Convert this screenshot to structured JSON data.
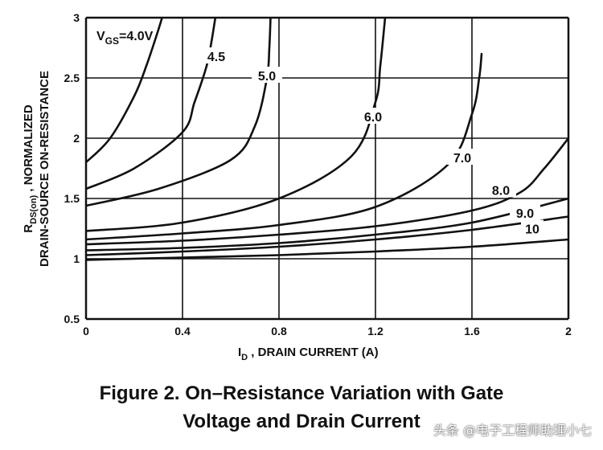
{
  "chart_data": {
    "type": "line",
    "xlabel": "I",
    "xlabel_sub": "D",
    "xlabel_rest": " , DRAIN CURRENT (A)",
    "ylabel_line1_main": "R",
    "ylabel_line1_sub": "DS(on)",
    "ylabel_line1_rest": " , NORMALIZED",
    "ylabel_line2": "DRAIN-SOURCE ON-RESISTANCE",
    "xlim": [
      0,
      2
    ],
    "ylim": [
      0.5,
      3
    ],
    "x_ticks": [
      "0",
      "0.4",
      "0.8",
      "1.2",
      "1.6",
      "2"
    ],
    "y_ticks": [
      "0.5",
      "1",
      "1.5",
      "2",
      "2.5",
      "3"
    ],
    "x_tick_values": [
      0,
      0.4,
      0.8,
      1.2,
      1.6,
      2
    ],
    "y_tick_values": [
      0.5,
      1,
      1.5,
      2,
      2.5,
      3
    ],
    "grid": true,
    "legend_title_main": "V",
    "legend_title_sub": "GS",
    "legend_title_rest": "=4.0V",
    "series": [
      {
        "name": "4.0",
        "x": [
          0,
          0.1,
          0.2,
          0.25,
          0.3,
          0.33,
          0.36
        ],
        "y": [
          1.8,
          2.0,
          2.35,
          2.6,
          2.9,
          3.1,
          3.3
        ]
      },
      {
        "name": "4.5",
        "x": [
          0,
          0.2,
          0.4,
          0.45,
          0.5,
          0.52,
          0.54
        ],
        "y": [
          1.58,
          1.75,
          2.05,
          2.3,
          2.6,
          2.8,
          3.05
        ]
      },
      {
        "name": "5.0",
        "x": [
          0,
          0.3,
          0.6,
          0.7,
          0.75,
          0.76,
          0.765
        ],
        "y": [
          1.44,
          1.58,
          1.82,
          2.1,
          2.5,
          2.75,
          3.0
        ]
      },
      {
        "name": "6.0",
        "x": [
          0,
          0.4,
          0.8,
          1.1,
          1.2,
          1.22,
          1.24
        ],
        "y": [
          1.23,
          1.3,
          1.5,
          1.85,
          2.3,
          2.6,
          3.0
        ]
      },
      {
        "name": "7.0",
        "x": [
          0,
          0.4,
          0.8,
          1.2,
          1.5,
          1.6,
          1.63,
          1.64
        ],
        "y": [
          1.16,
          1.21,
          1.28,
          1.43,
          1.78,
          2.2,
          2.5,
          2.7
        ]
      },
      {
        "name": "8.0",
        "x": [
          0,
          0.4,
          0.8,
          1.2,
          1.6,
          1.8,
          1.9,
          2.0
        ],
        "y": [
          1.12,
          1.15,
          1.2,
          1.27,
          1.4,
          1.55,
          1.75,
          2.0
        ]
      },
      {
        "name": "9.0",
        "x": [
          0,
          0.4,
          0.8,
          1.2,
          1.6,
          2.0
        ],
        "y": [
          1.07,
          1.09,
          1.13,
          1.2,
          1.3,
          1.5
        ]
      },
      {
        "name": "10",
        "x": [
          0,
          0.4,
          0.8,
          1.2,
          1.6,
          2.0
        ],
        "y": [
          1.03,
          1.06,
          1.1,
          1.16,
          1.24,
          1.35
        ]
      },
      {
        "name": "",
        "x": [
          0,
          0.4,
          0.8,
          1.2,
          1.6,
          2.0
        ],
        "y": [
          0.99,
          1.01,
          1.03,
          1.06,
          1.1,
          1.16
        ]
      }
    ],
    "curve_labels": [
      {
        "text": "4.5",
        "x": 0.54,
        "y": 2.68
      },
      {
        "text": "5.0",
        "x": 0.75,
        "y": 2.52
      },
      {
        "text": "6.0",
        "x": 1.19,
        "y": 2.18
      },
      {
        "text": "7.0",
        "x": 1.56,
        "y": 1.84
      },
      {
        "text": "8.0",
        "x": 1.72,
        "y": 1.57
      },
      {
        "text": "9.0",
        "x": 1.82,
        "y": 1.38
      },
      {
        "text": "10",
        "x": 1.85,
        "y": 1.25
      }
    ]
  },
  "caption": {
    "line1": "Figure 2. On–Resistance Variation with Gate",
    "line2": "Voltage and Drain Current"
  },
  "watermark": "头条 @电子工程师助理小七"
}
